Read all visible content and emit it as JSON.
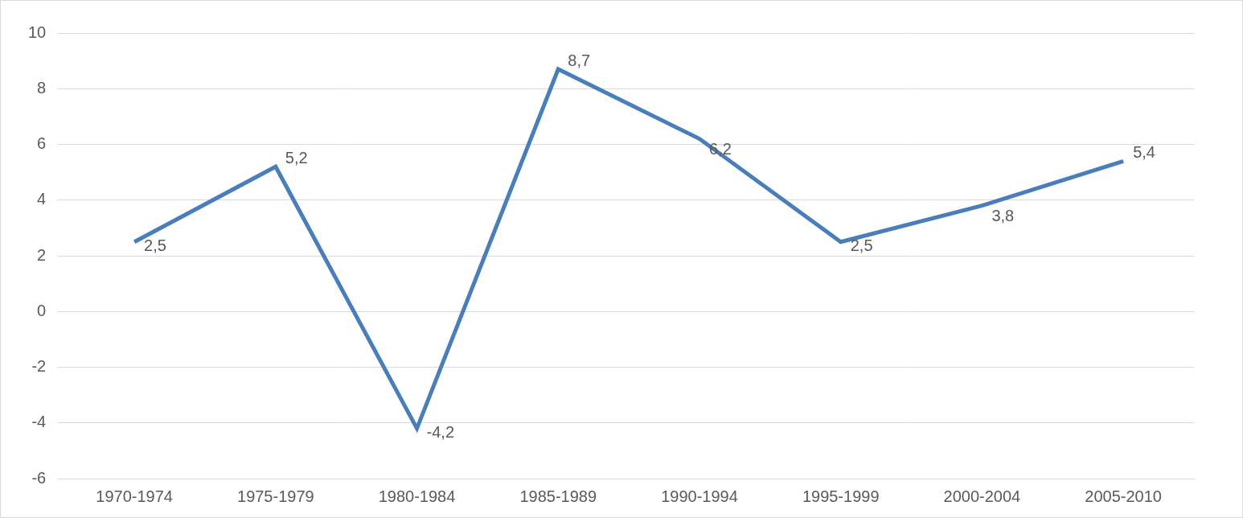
{
  "chart_data": {
    "type": "line",
    "categories": [
      "1970-1974",
      "1975-1979",
      "1980-1984",
      "1985-1989",
      "1990-1994",
      "1995-1999",
      "2000-2004",
      "2005-2010"
    ],
    "values": [
      2.5,
      5.2,
      -4.2,
      8.7,
      6.2,
      2.5,
      3.8,
      5.4
    ],
    "value_labels": [
      "2,5",
      "5,2",
      "-4,2",
      "8,7",
      "6,2",
      "2,5",
      "3,8",
      "5,4"
    ],
    "color": "#4a7ebb",
    "marker": "none",
    "line_style": "solid",
    "ylim": [
      -6,
      10
    ],
    "yticks": [
      -6,
      -4,
      -2,
      0,
      2,
      4,
      6,
      8,
      10
    ],
    "grid": true,
    "data_labels": true
  }
}
